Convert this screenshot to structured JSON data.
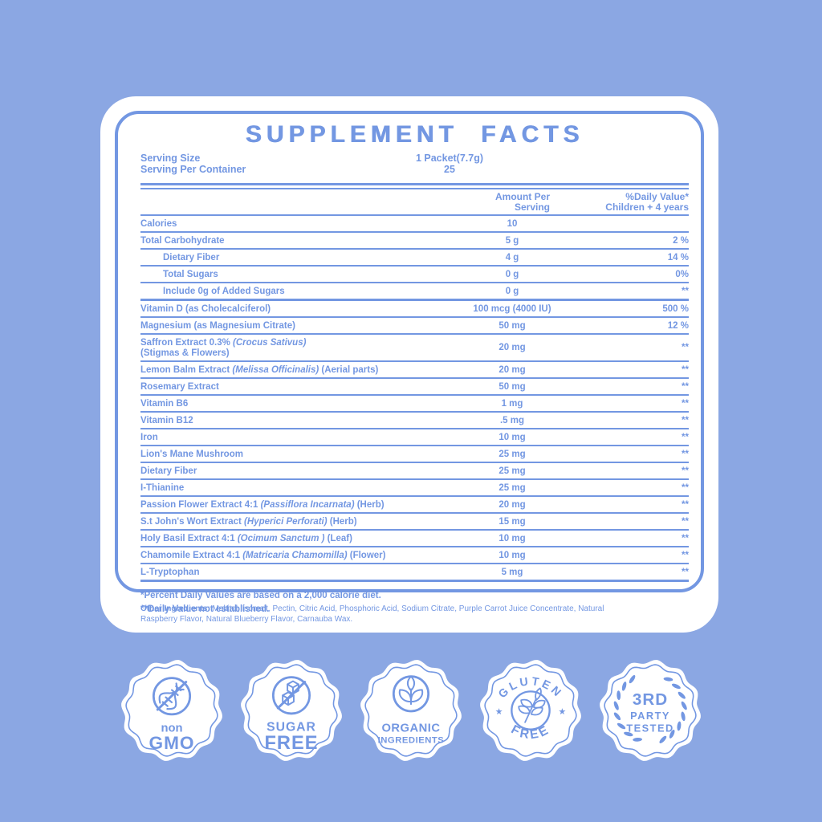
{
  "title": "SUPPLEMENT FACTS",
  "serving": {
    "size_label": "Serving Size",
    "size_value": "1 Packet(7.7g)",
    "container_label": "Serving Per Container",
    "container_value": "25"
  },
  "columns": {
    "amount_line1": "Amount Per",
    "amount_line2": "Serving",
    "dv_line1": "%Daily Value*",
    "dv_line2": "Children + 4 years"
  },
  "rows": [
    {
      "name": "Calories",
      "amount": "10",
      "dv": ""
    },
    {
      "name": "Total Carbohydrate",
      "amount": "5 g",
      "dv": "2 %"
    },
    {
      "name": "Dietary Fiber",
      "amount": "4 g",
      "dv": "14 %",
      "indent": true
    },
    {
      "name": "Total Sugars",
      "amount": "0 g",
      "dv": "0%",
      "indent": true
    },
    {
      "name": "Include 0g of Added Sugars",
      "amount": "0 g",
      "dv": "**",
      "indent": true,
      "thick": true
    },
    {
      "name": "Vitamin D (as Cholecalciferol)",
      "amount": "100 mcg (4000 IU)",
      "dv": "500 %"
    },
    {
      "name": "Magnesium (as Magnesium Citrate)",
      "amount": "50 mg",
      "dv": "12 %"
    },
    {
      "name": "Saffron Extract 0.3% ",
      "italic": "(Crocus Sativus)",
      "name2": "(Stigmas & Flowers)",
      "amount": "20 mg",
      "dv": "**"
    },
    {
      "name": "Lemon Balm Extract ",
      "italic": "(Melissa Officinalis)",
      "suffix": " (Aerial parts)",
      "amount": "20 mg",
      "dv": "**"
    },
    {
      "name": "Rosemary Extract",
      "amount": "50 mg",
      "dv": "**"
    },
    {
      "name": "Vitamin B6",
      "amount": "1 mg",
      "dv": "**"
    },
    {
      "name": "Vitamin B12",
      "amount": ".5 mg",
      "dv": "**"
    },
    {
      "name": "Iron",
      "amount": "10 mg",
      "dv": "**"
    },
    {
      "name": "Lion's Mane Mushroom",
      "amount": "25 mg",
      "dv": "**"
    },
    {
      "name": "Dietary Fiber",
      "amount": "25 mg",
      "dv": "**"
    },
    {
      "name": "I-Thianine",
      "amount": "25 mg",
      "dv": "**"
    },
    {
      "name": "Passion Flower Extract 4:1 ",
      "italic": "(Passiflora Incarnata)",
      "suffix": " (Herb)",
      "amount": "20 mg",
      "dv": "**"
    },
    {
      "name": "S.t John's Wort Extract ",
      "italic": "(Hyperici Perforati)",
      "suffix": " (Herb)",
      "amount": "15 mg",
      "dv": "**"
    },
    {
      "name": "Holy Basil Extract 4:1 ",
      "italic": "(Ocimum Sanctum )",
      "suffix": " (Leaf)",
      "amount": "10 mg",
      "dv": "**"
    },
    {
      "name": "Chamomile Extract 4:1 ",
      "italic": "(Matricaria Chamomilla)",
      "suffix": " (Flower)",
      "amount": "10 mg",
      "dv": "**"
    },
    {
      "name": "L-Tryptophan",
      "amount": "5 mg",
      "dv": "**",
      "thick": true
    }
  ],
  "footnotes": [
    "*Percent Daily Values are based on a 2,000 calorie diet.",
    "**Daily Value not established."
  ],
  "other_ingredients": {
    "label": "Other Ingredients:",
    "text": " Maltitol, Isomalt, Pectin, Citric Acid, Phosphoric Acid, Sodium Citrate, Purple Carrot Juice Concentrate, Natural Raspberry Flavor, Natural Blueberry Flavor, Carnauba Wax."
  },
  "badges": [
    {
      "id": "non-gmo",
      "line1": "non",
      "line2": "GMO",
      "icon": "dna-crossed-icon"
    },
    {
      "id": "sugar-free",
      "line1": "SUGAR",
      "line2": "FREE",
      "icon": "sugar-cubes-crossed-icon"
    },
    {
      "id": "organic-ingredients",
      "line1": "ORGANIC",
      "line2": "INGREDIENTS",
      "icon": "plant-leaves-icon"
    },
    {
      "id": "gluten-free",
      "top": "GLUTEN",
      "bottom": "FREE",
      "star": "★",
      "icon": "grain-plant-icon"
    },
    {
      "id": "third-party-tested",
      "line1": "3RD",
      "line2": "PARTY",
      "line3": "TESTED",
      "icon": "laurel-wreath-icon"
    }
  ],
  "colors": {
    "background": "#8BA7E3",
    "accent": "#7397E2",
    "card": "#FFFFFF"
  }
}
